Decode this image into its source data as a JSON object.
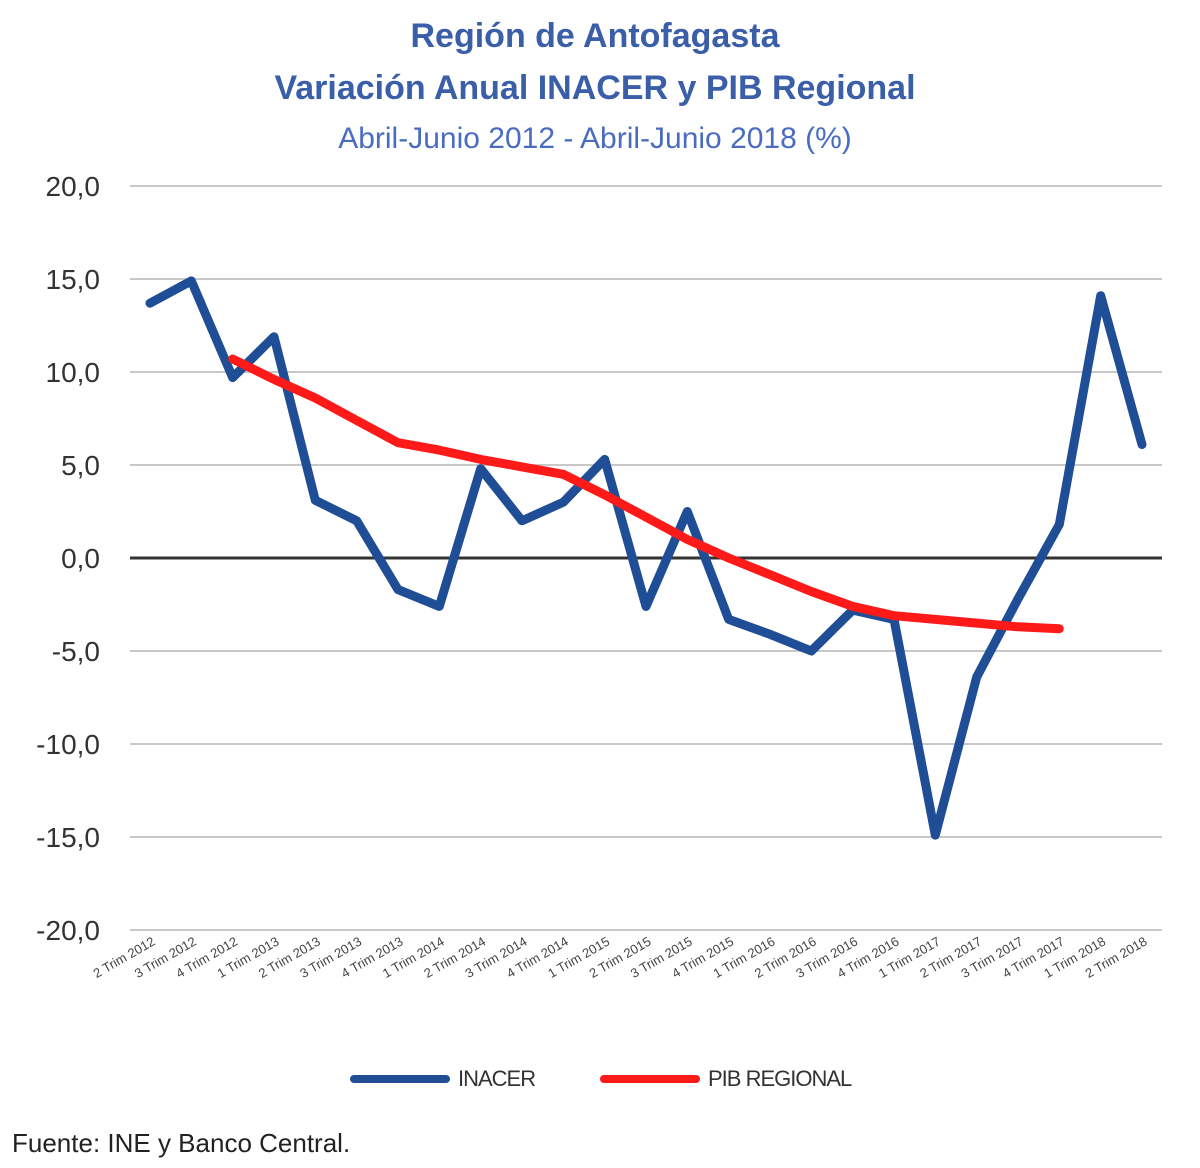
{
  "title": {
    "line1": "Región de Antofagasta",
    "line2": "Variación Anual INACER y PIB Regional",
    "line3": "Abril-Junio 2012 - Abril-Junio 2018 (%)"
  },
  "source": "Fuente: INE y Banco Central.",
  "chart_data": {
    "type": "line",
    "title": "Región de Antofagasta Variación Anual INACER y PIB Regional",
    "subtitle": "Abril-Junio 2012 - Abril-Junio 2018 (%)",
    "xlabel": "",
    "ylabel": "",
    "ylim": [
      -20,
      20
    ],
    "yticks": [
      20,
      15,
      10,
      5,
      0,
      -5,
      -10,
      -15,
      -20
    ],
    "ytick_labels": [
      "20,0",
      "15,0",
      "10,0",
      "5,0",
      "0,0",
      "-5,0",
      "-10,0",
      "-15,0",
      "-20,0"
    ],
    "grid": true,
    "legend": "bottom",
    "categories": [
      "2 Trim 2012",
      "3 Trim 2012",
      "4 Trim 2012",
      "1 Trim 2013",
      "2 Trim 2013",
      "3 Trim 2013",
      "4 Trim 2013",
      "1 Trim 2014",
      "2 Trim 2014",
      "3 Trim 2014",
      "4 Trim 2014",
      "1 Trim 2015",
      "2 Trim 2015",
      "3 Trim 2015",
      "4 Trim 2015",
      "1 Trim 2016",
      "2 Trim 2016",
      "3 Trim 2016",
      "4 Trim 2016",
      "1 Trim 2017",
      "2 Trim 2017",
      "3 Trim 2017",
      "4 Trim 2017",
      "1 Trim 2018",
      "2 Trim 2018"
    ],
    "series": [
      {
        "name": "INACER",
        "color": "#1f4e96",
        "values": [
          13.7,
          14.9,
          9.7,
          11.9,
          3.1,
          2.0,
          -1.7,
          -2.6,
          4.8,
          2.0,
          3.0,
          5.3,
          -2.6,
          2.5,
          -3.3,
          -4.1,
          -5.0,
          -2.8,
          -3.3,
          -14.9,
          -6.4,
          -2.2,
          1.8,
          14.1,
          6.1
        ]
      },
      {
        "name": "PIB REGIONAL",
        "color": "#ff1a1a",
        "values": [
          null,
          null,
          10.7,
          9.6,
          8.6,
          7.4,
          6.2,
          5.8,
          5.3,
          4.9,
          4.5,
          3.4,
          2.2,
          1.0,
          0.0,
          -0.9,
          -1.8,
          -2.6,
          -3.1,
          -3.3,
          -3.5,
          -3.7,
          -3.8,
          null,
          null
        ]
      }
    ]
  }
}
